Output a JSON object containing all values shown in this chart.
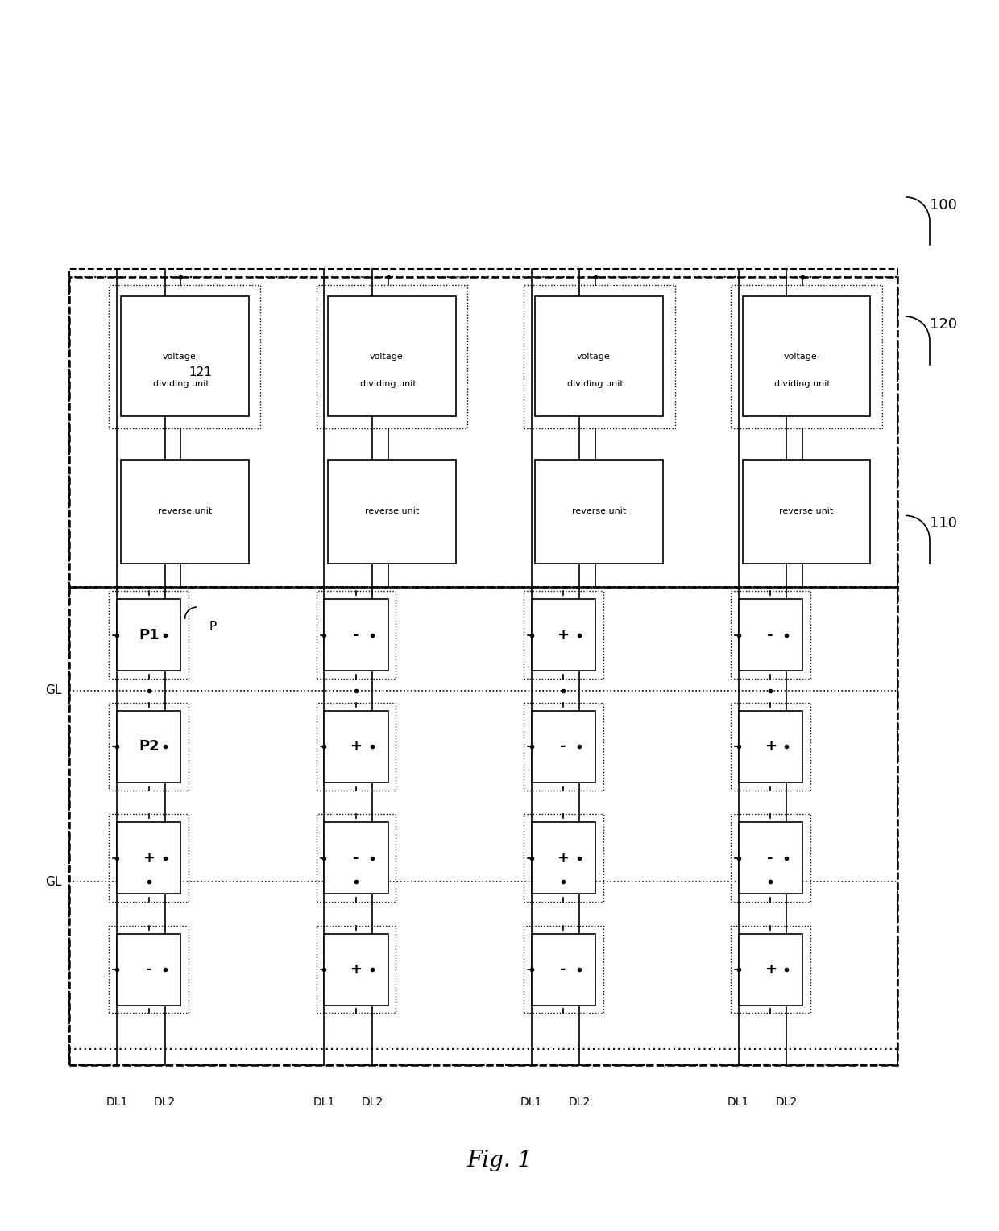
{
  "fig_width": 12.4,
  "fig_height": 15.29,
  "bg_color": "#ffffff",
  "title": "Fig. 1",
  "label_100": "100",
  "label_120": "120",
  "label_121": "121",
  "label_110": "110",
  "label_P": "P",
  "label_GL1": "GL",
  "label_GL2": "GL",
  "dl_labels": [
    "DL1",
    "DL2",
    "DL1",
    "DL2",
    "DL1",
    "DL2",
    "DL1",
    "DL2"
  ],
  "vdu_text": "voltage-\ndividing unit",
  "ru_text": "reverse unit",
  "pixel_signs_row1": [
    "P1",
    "-",
    "+",
    "-"
  ],
  "pixel_signs_row2": [
    "P2",
    "+",
    "-",
    "+"
  ],
  "pixel_signs_row3": [
    "+",
    "-",
    "+",
    "-"
  ],
  "pixel_signs_row4": [
    "-",
    "+",
    "-",
    "+"
  ]
}
